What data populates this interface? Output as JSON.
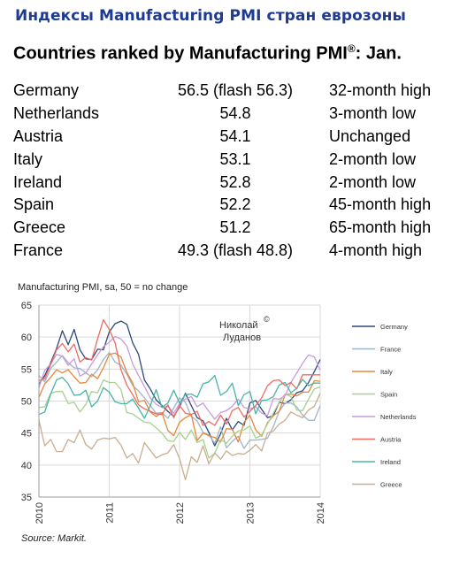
{
  "header": "Индексы Manufacturing PMI стран еврозоны",
  "subtitle": "Countries ranked by Manufacturing PMI",
  "subtitle_mark": "®",
  "subtitle_suffix": ": Jan.",
  "ranking": [
    {
      "country": "Germany",
      "value": "56.5 (flash 56.3)",
      "change": "32-month high"
    },
    {
      "country": "Netherlands",
      "value": "54.8",
      "change": "3-month low"
    },
    {
      "country": "Austria",
      "value": "54.1",
      "change": "Unchanged"
    },
    {
      "country": "Italy",
      "value": "53.1",
      "change": "2-month low"
    },
    {
      "country": "Ireland",
      "value": "52.8",
      "change": "2-month low"
    },
    {
      "country": "Spain",
      "value": "52.2",
      "change": "45-month high"
    },
    {
      "country": "Greece",
      "value": "51.2",
      "change": "65-month high"
    },
    {
      "country": "France",
      "value": "49.3 (flash 48.8)",
      "change": "4-month high"
    }
  ],
  "watermark": {
    "line1": "Николай",
    "mark": "©",
    "line2": "Луданов"
  },
  "source": "Source: Markit.",
  "chart_data": {
    "type": "line",
    "title": "Manufacturing PMI, sa, 50 = no change",
    "xlabel": "",
    "ylabel": "",
    "ylim": [
      35,
      65
    ],
    "yticks": [
      "35",
      "40",
      "45",
      "50",
      "55",
      "60",
      "65"
    ],
    "xticks": [
      "2010",
      "2011",
      "2012",
      "2013",
      "2014"
    ],
    "grid": true,
    "legend": "right",
    "series": [
      {
        "name": "Germany",
        "color": "#2b4a7a",
        "values": [
          52.6,
          54.0,
          56.0,
          58.2,
          61.0,
          58.8,
          61.2,
          58.0,
          56.6,
          56.5,
          58.1,
          58.0,
          60.8,
          62.1,
          62.5,
          62.0,
          59.1,
          57.3,
          53.3,
          51.9,
          50.2,
          49.3,
          48.4,
          47.6,
          49.1,
          51.2,
          49.3,
          47.4,
          46.9,
          45.1,
          43.0,
          44.9,
          47.3,
          45.5,
          46.8,
          46.2,
          49.7,
          50.1,
          48.7,
          47.4,
          47.7,
          49.8,
          49.6,
          50.2,
          51.3,
          51.6,
          52.9,
          54.6,
          56.5
        ]
      },
      {
        "name": "France",
        "color": "#9fb5c8",
        "values": [
          54.0,
          53.0,
          55.1,
          56.1,
          57.1,
          56.0,
          55.2,
          55.1,
          54.4,
          53.8,
          54.9,
          56.5,
          57.6,
          56.1,
          55.6,
          54.2,
          52.4,
          51.6,
          50.5,
          49.3,
          48.1,
          48.2,
          47.3,
          48.9,
          50.5,
          49.8,
          47.6,
          46.9,
          45.1,
          44.7,
          43.4,
          46.0,
          42.7,
          43.7,
          44.5,
          42.6,
          43.9,
          43.9,
          44.0,
          44.2,
          46.0,
          48.4,
          49.7,
          49.7,
          49.1,
          47.8,
          47.0,
          47.0,
          49.3
        ]
      },
      {
        "name": "Italy",
        "color": "#e8883a",
        "values": [
          50.6,
          52.7,
          53.7,
          54.9,
          54.4,
          54.9,
          53.8,
          52.8,
          52.9,
          54.2,
          53.5,
          55.2,
          57.3,
          57.5,
          56.9,
          54.5,
          52.8,
          49.9,
          50.1,
          48.3,
          47.6,
          48.2,
          45.4,
          44.6,
          46.7,
          47.4,
          47.9,
          43.8,
          45.0,
          44.6,
          44.3,
          43.6,
          45.7,
          45.6,
          43.6,
          46.7,
          47.8,
          45.5,
          44.5,
          46.6,
          47.7,
          48.4,
          51.0,
          51.1,
          50.8,
          51.4,
          51.4,
          53.2,
          53.1
        ]
      },
      {
        "name": "Spain",
        "color": "#a8d08e",
        "values": [
          49.0,
          49.1,
          51.2,
          51.5,
          51.5,
          49.6,
          49.8,
          48.3,
          49.5,
          51.5,
          51.3,
          53.3,
          52.9,
          52.9,
          51.8,
          48.2,
          48.0,
          47.3,
          46.7,
          46.6,
          45.8,
          45.0,
          43.8,
          43.7,
          45.1,
          44.0,
          45.5,
          43.5,
          44.0,
          41.1,
          41.8,
          44.0,
          43.4,
          44.5,
          45.3,
          45.5,
          46.1,
          44.2,
          44.7,
          46.4,
          48.1,
          49.8,
          51.1,
          50.7,
          48.6,
          48.5,
          50.3,
          51.9,
          52.2
        ]
      },
      {
        "name": "Netherlands",
        "color": "#c89be0",
        "values": [
          52.1,
          54.8,
          55.8,
          57.3,
          57.0,
          55.6,
          56.6,
          53.9,
          54.4,
          55.8,
          57.2,
          58.5,
          59.2,
          60.1,
          59.7,
          58.6,
          55.8,
          54.0,
          52.3,
          50.5,
          49.5,
          49.0,
          49.2,
          48.1,
          49.6,
          50.3,
          50.7,
          49.1,
          49.7,
          48.4,
          47.2,
          48.2,
          48.5,
          49.2,
          50.3,
          49.0,
          48.8,
          49.1,
          48.1,
          47.7,
          50.4,
          50.3,
          50.8,
          52.9,
          54.4,
          55.9,
          57.2,
          56.9,
          54.8
        ]
      },
      {
        "name": "Austria",
        "color": "#ef6b61",
        "values": [
          53.2,
          53.5,
          55.7,
          58.0,
          59.0,
          57.7,
          58.9,
          56.1,
          56.8,
          56.4,
          59.7,
          62.7,
          61.2,
          59.1,
          54.9,
          52.5,
          51.0,
          49.4,
          48.8,
          48.4,
          48.0,
          47.9,
          49.4,
          47.4,
          49.3,
          48.1,
          47.9,
          48.4,
          46.2,
          46.8,
          46.2,
          47.8,
          46.4,
          48.5,
          49.0,
          47.5,
          48.4,
          49.3,
          50.5,
          52.4,
          53.2,
          53.3,
          52.4,
          52.9,
          51.9,
          54.1,
          54.1,
          54.1,
          54.1
        ]
      },
      {
        "name": "Ireland",
        "color": "#48b5a6",
        "values": [
          47.9,
          48.3,
          51.1,
          53.3,
          53.7,
          52.7,
          50.9,
          51.0,
          51.7,
          49.1,
          50.0,
          52.1,
          51.4,
          49.9,
          49.6,
          49.6,
          50.3,
          48.9,
          47.3,
          49.3,
          51.8,
          49.0,
          49.7,
          51.7,
          49.7,
          51.0,
          51.1,
          50.6,
          52.7,
          53.0,
          54.0,
          50.9,
          51.5,
          52.8,
          49.3,
          51.0,
          51.5,
          48.0,
          50.1,
          50.2,
          50.7,
          52.5,
          52.9,
          51.3,
          52.0,
          53.4,
          52.4,
          52.8,
          52.8
        ]
      },
      {
        "name": "Greece",
        "color": "#c9ad8f",
        "values": [
          47.0,
          43.0,
          44.0,
          42.1,
          42.1,
          44.0,
          43.5,
          45.5,
          43.2,
          42.5,
          43.9,
          44.2,
          44.1,
          44.3,
          43.1,
          41.1,
          41.8,
          40.3,
          43.5,
          42.3,
          41.1,
          41.6,
          41.9,
          43.2,
          41.0,
          37.7,
          41.3,
          40.4,
          43.0,
          40.2,
          41.9,
          40.9,
          42.2,
          41.5,
          41.8,
          41.7,
          42.3,
          43.2,
          42.2,
          45.0,
          45.3,
          46.4,
          47.0,
          48.3,
          47.8,
          47.4,
          48.6,
          49.2,
          51.2
        ]
      }
    ]
  }
}
